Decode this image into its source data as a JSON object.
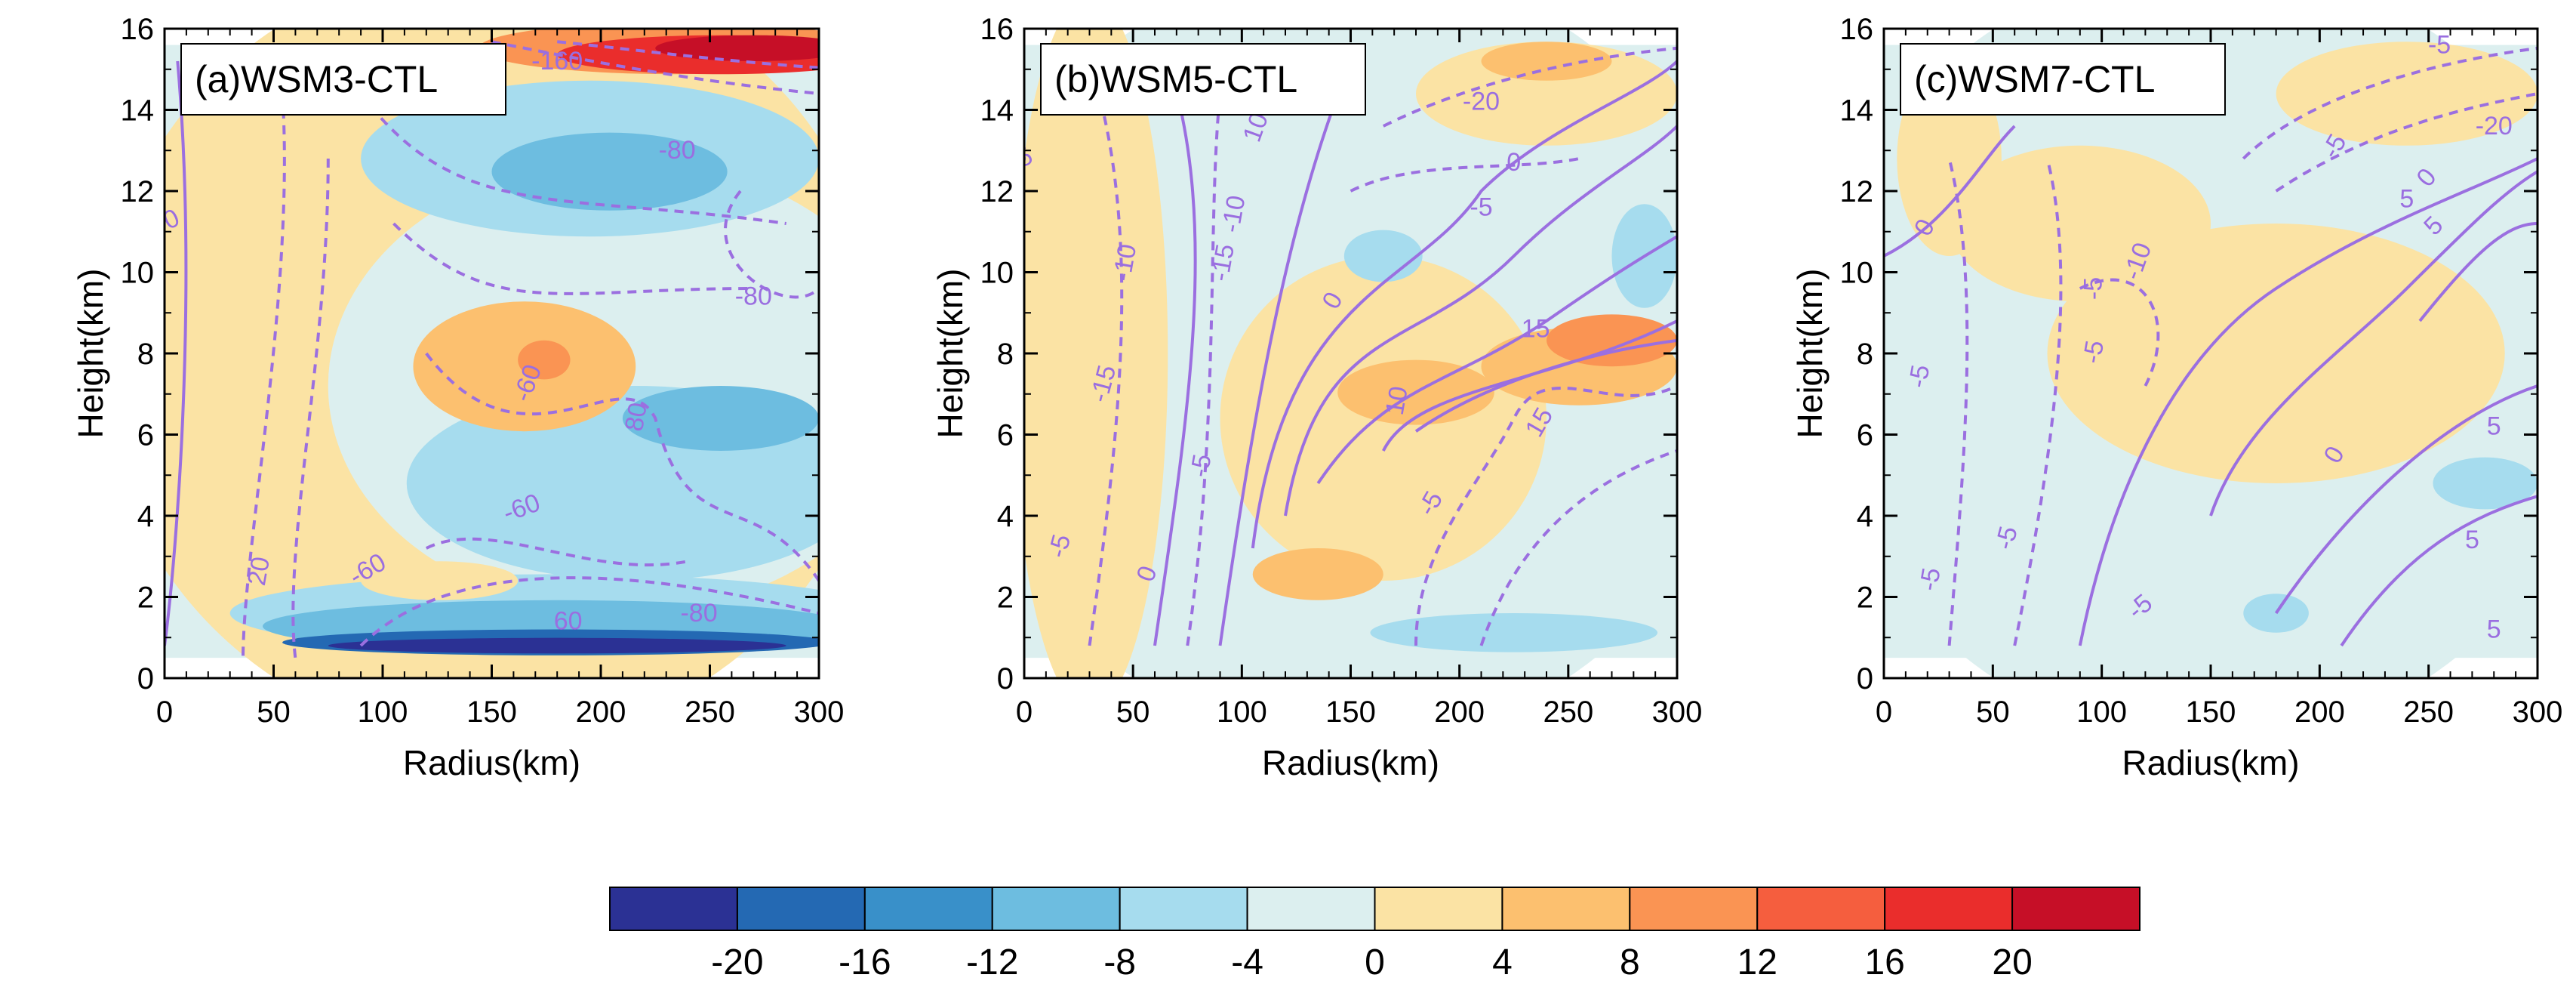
{
  "figure": {
    "y_label": "Height(km)",
    "x_label": "Radius(km)"
  },
  "colorbar": {
    "colors": [
      "#2b3194",
      "#2469b3",
      "#3990c9",
      "#6dbde0",
      "#a6dcee",
      "#dcefef",
      "#fbe3a4",
      "#fcc06f",
      "#fa9453",
      "#f55e3e",
      "#ea2d2c",
      "#c60f27"
    ],
    "tick_labels": [
      "-20",
      "-16",
      "-12",
      "-8",
      "-4",
      "0",
      "4",
      "8",
      "12",
      "16",
      "20"
    ]
  },
  "chart_data": [
    {
      "type": "contour",
      "title": "(a)WSM3-CTL",
      "xlabel": "Radius(km)",
      "ylabel": "Height(km)",
      "xlim": [
        0,
        300
      ],
      "ylim": [
        0,
        16
      ],
      "x_ticks": [
        "0",
        "50",
        "100",
        "150",
        "200",
        "250",
        "300"
      ],
      "y_ticks": [
        "0",
        "2",
        "4",
        "6",
        "8",
        "10",
        "12",
        "14",
        "16"
      ],
      "contour_labels": [
        {
          "text": "-160",
          "x": 180,
          "y": 15.0,
          "rot": 0
        },
        {
          "text": "-120",
          "x": 95,
          "y": 14.4,
          "rot": 0
        },
        {
          "text": "-80",
          "x": 235,
          "y": 12.8,
          "rot": 0
        },
        {
          "text": "-40",
          "x": 0,
          "y": 11.4,
          "rot": -90
        },
        {
          "text": "-40",
          "x": 0,
          "y": 11.4,
          "rot": -90
        },
        {
          "text": "-60",
          "x": 0,
          "y": 11.0,
          "rot": -25
        },
        {
          "text": "-80",
          "x": 270,
          "y": 9.2,
          "rot": 0
        },
        {
          "text": "-60",
          "x": 170,
          "y": 7.2,
          "rot": -70
        },
        {
          "text": "80",
          "x": 220,
          "y": 6.4,
          "rot": -80
        },
        {
          "text": "-60",
          "x": 165,
          "y": 4.0,
          "rot": -20
        },
        {
          "text": "-60",
          "x": 95,
          "y": 2.5,
          "rot": -30
        },
        {
          "text": "20",
          "x": 47,
          "y": 2.6,
          "rot": -80
        },
        {
          "text": "60",
          "x": 185,
          "y": 1.2,
          "rot": 0
        },
        {
          "text": "-80",
          "x": 245,
          "y": 1.4,
          "rot": 0
        }
      ]
    },
    {
      "type": "contour",
      "title": "(b)WSM5-CTL",
      "xlabel": "Radius(km)",
      "ylabel": "Height(km)",
      "xlim": [
        0,
        300
      ],
      "ylim": [
        0,
        16
      ],
      "x_ticks": [
        "0",
        "50",
        "100",
        "150",
        "200",
        "250",
        "300"
      ],
      "y_ticks": [
        "0",
        "2",
        "4",
        "6",
        "8",
        "10",
        "12",
        "14",
        "16"
      ],
      "contour_labels": [
        {
          "text": "-20",
          "x": 210,
          "y": 14.0,
          "rot": 0
        },
        {
          "text": "0",
          "x": 225,
          "y": 12.5,
          "rot": 0
        },
        {
          "text": "10",
          "x": 110,
          "y": 13.5,
          "rot": -70
        },
        {
          "text": "-5",
          "x": 0,
          "y": 12.6,
          "rot": -25
        },
        {
          "text": "10",
          "x": 0,
          "y": 12.6,
          "rot": -80
        },
        {
          "text": "-5",
          "x": 210,
          "y": 11.4,
          "rot": 0
        },
        {
          "text": "-10",
          "x": 100,
          "y": 11.4,
          "rot": -80
        },
        {
          "text": "-10",
          "x": 50,
          "y": 10.2,
          "rot": -80
        },
        {
          "text": "-15",
          "x": 95,
          "y": 10.2,
          "rot": -80
        },
        {
          "text": "0",
          "x": 145,
          "y": 9.2,
          "rot": -60
        },
        {
          "text": "15",
          "x": 235,
          "y": 8.4,
          "rot": 0
        },
        {
          "text": "-15",
          "x": 40,
          "y": 7.2,
          "rot": -75
        },
        {
          "text": "10",
          "x": 175,
          "y": 6.8,
          "rot": -80
        },
        {
          "text": "15",
          "x": 240,
          "y": 6.2,
          "rot": -60
        },
        {
          "text": "-5",
          "x": 85,
          "y": 5.2,
          "rot": -80
        },
        {
          "text": "-5",
          "x": 190,
          "y": 4.2,
          "rot": -60
        },
        {
          "text": "-5",
          "x": 20,
          "y": 3.2,
          "rot": -75
        },
        {
          "text": "0",
          "x": 60,
          "y": 2.5,
          "rot": -70
        }
      ]
    },
    {
      "type": "contour",
      "title": "(c)WSM7-CTL",
      "xlabel": "Radius(km)",
      "ylabel": "Height(km)",
      "xlim": [
        0,
        300
      ],
      "ylim": [
        0,
        16
      ],
      "x_ticks": [
        "0",
        "50",
        "100",
        "150",
        "200",
        "250",
        "300"
      ],
      "y_ticks": [
        "0",
        "2",
        "4",
        "6",
        "8",
        "10",
        "12",
        "14",
        "16"
      ],
      "contour_labels": [
        {
          "text": "-5",
          "x": 255,
          "y": 15.4,
          "rot": 0
        },
        {
          "text": "-20",
          "x": 280,
          "y": 13.4,
          "rot": 0
        },
        {
          "text": "-5",
          "x": 210,
          "y": 13.0,
          "rot": -60
        },
        {
          "text": "0",
          "x": 252,
          "y": 12.2,
          "rot": -50
        },
        {
          "text": "5",
          "x": 240,
          "y": 11.6,
          "rot": 0
        },
        {
          "text": "0",
          "x": 22,
          "y": 11.0,
          "rot": -60
        },
        {
          "text": "5",
          "x": 255,
          "y": 11.0,
          "rot": -45
        },
        {
          "text": "-10",
          "x": 120,
          "y": 10.2,
          "rot": -70
        },
        {
          "text": "-5",
          "x": 100,
          "y": 9.6,
          "rot": -90
        },
        {
          "text": "-5",
          "x": 20,
          "y": 7.4,
          "rot": -80
        },
        {
          "text": "-5",
          "x": 100,
          "y": 8.0,
          "rot": -80
        },
        {
          "text": "5",
          "x": 280,
          "y": 6.0,
          "rot": 0
        },
        {
          "text": "0",
          "x": 210,
          "y": 5.4,
          "rot": -60
        },
        {
          "text": "-5",
          "x": 60,
          "y": 3.4,
          "rot": -75
        },
        {
          "text": "5",
          "x": 270,
          "y": 3.2,
          "rot": 0
        },
        {
          "text": "-5",
          "x": 25,
          "y": 2.4,
          "rot": -80
        },
        {
          "text": "5",
          "x": 280,
          "y": 1.0,
          "rot": 0
        },
        {
          "text": "-5",
          "x": 120,
          "y": 1.6,
          "rot": -40
        }
      ]
    }
  ]
}
